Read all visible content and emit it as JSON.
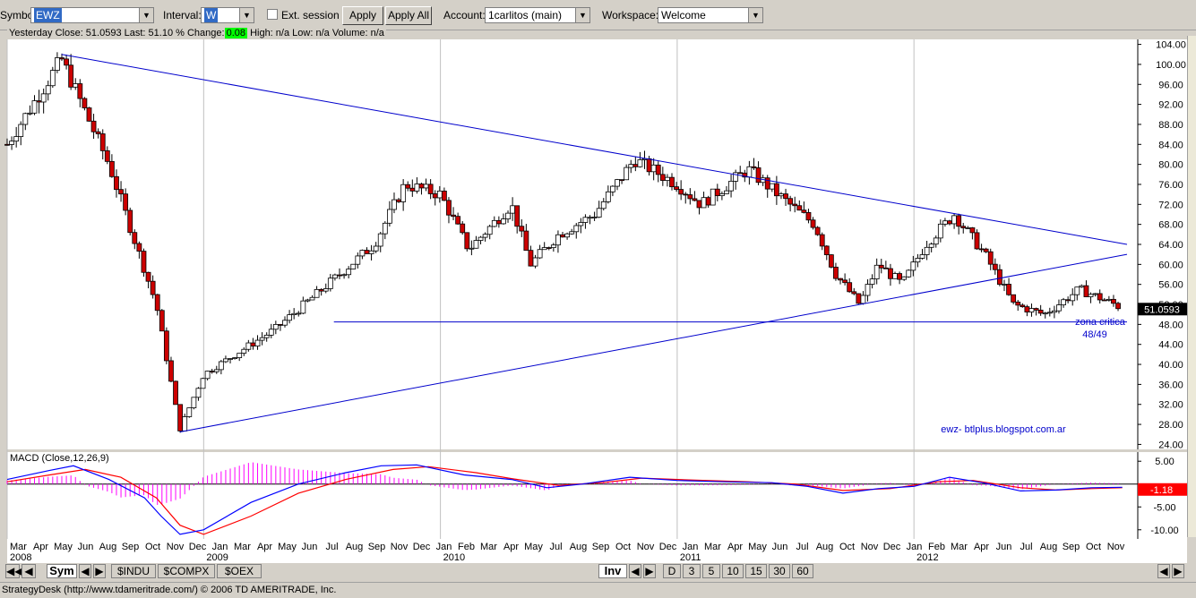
{
  "toolbar": {
    "symbol_label": "Symbol:",
    "symbol_value": "EWZ",
    "interval_label": "Interval:",
    "interval_value": "W",
    "ext_session_label": "Ext. session",
    "apply_label": "Apply",
    "apply_all_label": "Apply All",
    "account_label": "Account:",
    "account_value": "1carlitos (main)",
    "workspace_label": "Workspace:",
    "workspace_value": "Welcome"
  },
  "infobar": {
    "yesterday_close": "Yesterday Close: 51.0593",
    "last": "Last: 51.10",
    "pct_change_label": "% Change:",
    "pct_change_value": "0.08",
    "high": "High: n/a",
    "low": "Low: n/a",
    "volume": "Volume: n/a"
  },
  "tabs": {
    "sym_label": "Sym",
    "symbols": [
      "$INDU",
      "$COMPX",
      "$OEX"
    ],
    "inv_label": "Inv",
    "intervals": [
      "D",
      "3",
      "5",
      "10",
      "15",
      "30",
      "60"
    ]
  },
  "status_text": "StrategyDesk (http://www.tdameritrade.com/) © 2006 TD AMERITRADE, Inc.",
  "colors": {
    "up": "#ffffff",
    "down": "#cc0000",
    "trend": "#0000cc",
    "macd": "#0000ff",
    "signal": "#ff0000",
    "hist": "#ff00ff",
    "price_tag_bg": "#000000"
  },
  "chart_data": [
    {
      "type": "candlestick",
      "interval": "weekly",
      "symbol": "EWZ",
      "ylim": [
        23,
        105
      ],
      "yticks": [
        24,
        28,
        32,
        36,
        40,
        44,
        48,
        52,
        56,
        60,
        64,
        68,
        72,
        76,
        80,
        84,
        88,
        92,
        96,
        100,
        104
      ],
      "ytick_labels": [
        "24.00",
        "28.00",
        "32.00",
        "36.00",
        "40.00",
        "44.00",
        "48.00",
        "52.00",
        "56.00",
        "60.00",
        "64.00",
        "68.00",
        "72.00",
        "76.00",
        "80.00",
        "84.00",
        "88.00",
        "92.00",
        "96.00",
        "100.00",
        "104.00"
      ],
      "last_price_label": "51.0593",
      "last_price": 51.06,
      "x_months": [
        "Mar",
        "Apr",
        "May",
        "Jun",
        "Aug",
        "Sep",
        "Oct",
        "Nov",
        "Dec",
        "Jan",
        "Mar",
        "Apr",
        "May",
        "Jun",
        "Jul",
        "Aug",
        "Sep",
        "Nov",
        "Dec",
        "Jan",
        "Feb",
        "Mar",
        "Apr",
        "May",
        "Jul",
        "Aug",
        "Sep",
        "Oct",
        "Nov",
        "Dec",
        "Jan",
        "Mar",
        "Apr",
        "May",
        "Jun",
        "Jul",
        "Aug",
        "Oct",
        "Nov",
        "Dec",
        "Jan",
        "Feb",
        "Mar",
        "Apr",
        "Jun",
        "Jul",
        "Aug",
        "Sep",
        "Oct",
        "Nov"
      ],
      "x_years": [
        {
          "label": "2008",
          "year": 2008.17
        },
        {
          "label": "2009",
          "year": 2009.0
        },
        {
          "label": "2010",
          "year": 2010.0
        },
        {
          "label": "2011",
          "year": 2011.0
        },
        {
          "label": "2012",
          "year": 2012.0
        }
      ],
      "x_range": [
        2008.17,
        2012.9
      ],
      "key_points": [
        {
          "date": 2008.17,
          "close": 84
        },
        {
          "date": 2008.4,
          "close": 101
        },
        {
          "date": 2008.6,
          "close": 80
        },
        {
          "date": 2008.8,
          "close": 52
        },
        {
          "date": 2008.9,
          "close": 27
        },
        {
          "date": 2009.0,
          "close": 38
        },
        {
          "date": 2009.3,
          "close": 47
        },
        {
          "date": 2009.5,
          "close": 55
        },
        {
          "date": 2009.72,
          "close": 64
        },
        {
          "date": 2009.85,
          "close": 76
        },
        {
          "date": 2010.0,
          "close": 74
        },
        {
          "date": 2010.12,
          "close": 63
        },
        {
          "date": 2010.3,
          "close": 72
        },
        {
          "date": 2010.38,
          "close": 60
        },
        {
          "date": 2010.5,
          "close": 66
        },
        {
          "date": 2010.65,
          "close": 70
        },
        {
          "date": 2010.82,
          "close": 81
        },
        {
          "date": 2011.0,
          "close": 76
        },
        {
          "date": 2011.1,
          "close": 72
        },
        {
          "date": 2011.3,
          "close": 79
        },
        {
          "date": 2011.5,
          "close": 71
        },
        {
          "date": 2011.58,
          "close": 68
        },
        {
          "date": 2011.67,
          "close": 58
        },
        {
          "date": 2011.77,
          "close": 52
        },
        {
          "date": 2011.85,
          "close": 60
        },
        {
          "date": 2011.95,
          "close": 56
        },
        {
          "date": 2012.05,
          "close": 64
        },
        {
          "date": 2012.17,
          "close": 70
        },
        {
          "date": 2012.3,
          "close": 62
        },
        {
          "date": 2012.42,
          "close": 52
        },
        {
          "date": 2012.55,
          "close": 50
        },
        {
          "date": 2012.7,
          "close": 55
        },
        {
          "date": 2012.85,
          "close": 52
        },
        {
          "date": 2012.88,
          "close": 51.1
        }
      ],
      "trendlines": [
        {
          "from": {
            "date": 2008.4,
            "price": 102
          },
          "to": {
            "date": 2012.9,
            "price": 64
          }
        },
        {
          "from": {
            "date": 2008.9,
            "price": 26.5
          },
          "to": {
            "date": 2012.9,
            "price": 62
          }
        },
        {
          "from": {
            "date": 2009.55,
            "price": 48.5
          },
          "to": {
            "date": 2012.9,
            "price": 48.5
          }
        }
      ],
      "annotations": [
        "zona critica",
        "48/49",
        "ewz- btlplus.blogspot.com.ar"
      ]
    },
    {
      "type": "line",
      "title": "MACD (Close,12,26,9)",
      "ylim": [
        -12,
        7
      ],
      "yticks": [
        5,
        0,
        -5,
        -10
      ],
      "ytick_labels": [
        "5.00",
        "",
        "-5.00",
        "-10.00"
      ],
      "last_value_label": "-1.18",
      "series": [
        {
          "values_key": "macd_points",
          "points": [
            [
              2008.17,
              1
            ],
            [
              2008.35,
              3
            ],
            [
              2008.45,
              4
            ],
            [
              2008.6,
              1
            ],
            [
              2008.75,
              -3
            ],
            [
              2008.82,
              -7
            ],
            [
              2008.9,
              -11
            ],
            [
              2009.0,
              -10
            ],
            [
              2009.2,
              -4
            ],
            [
              2009.4,
              0
            ],
            [
              2009.6,
              2.5
            ],
            [
              2009.75,
              4
            ],
            [
              2009.9,
              4.2
            ],
            [
              2010.1,
              2
            ],
            [
              2010.3,
              1
            ],
            [
              2010.45,
              -0.8
            ],
            [
              2010.6,
              0
            ],
            [
              2010.8,
              1.5
            ],
            [
              2011.0,
              0.8
            ],
            [
              2011.2,
              0.5
            ],
            [
              2011.4,
              0.3
            ],
            [
              2011.55,
              -0.5
            ],
            [
              2011.7,
              -2
            ],
            [
              2011.85,
              -1
            ],
            [
              2012.0,
              -0.5
            ],
            [
              2012.15,
              1.5
            ],
            [
              2012.3,
              0.2
            ],
            [
              2012.45,
              -1.5
            ],
            [
              2012.6,
              -1.3
            ],
            [
              2012.75,
              -0.8
            ],
            [
              2012.88,
              -0.7
            ]
          ]
        },
        {
          "values_key": "signal_points",
          "points": [
            [
              2008.17,
              0.5
            ],
            [
              2008.35,
              2
            ],
            [
              2008.5,
              3.2
            ],
            [
              2008.65,
              1.5
            ],
            [
              2008.8,
              -3
            ],
            [
              2008.9,
              -9
            ],
            [
              2009.0,
              -11
            ],
            [
              2009.2,
              -7
            ],
            [
              2009.4,
              -2
            ],
            [
              2009.6,
              1
            ],
            [
              2009.8,
              3.2
            ],
            [
              2009.95,
              3.8
            ],
            [
              2010.15,
              2.5
            ],
            [
              2010.3,
              1.2
            ],
            [
              2010.5,
              -0.3
            ],
            [
              2010.7,
              0.4
            ],
            [
              2010.85,
              1.3
            ],
            [
              2011.05,
              0.9
            ],
            [
              2011.3,
              0.5
            ],
            [
              2011.5,
              0
            ],
            [
              2011.7,
              -1.4
            ],
            [
              2011.9,
              -1
            ],
            [
              2012.1,
              0.5
            ],
            [
              2012.25,
              0.8
            ],
            [
              2012.45,
              -0.8
            ],
            [
              2012.6,
              -1.3
            ],
            [
              2012.75,
              -1
            ],
            [
              2012.88,
              -0.8
            ]
          ]
        }
      ]
    }
  ]
}
